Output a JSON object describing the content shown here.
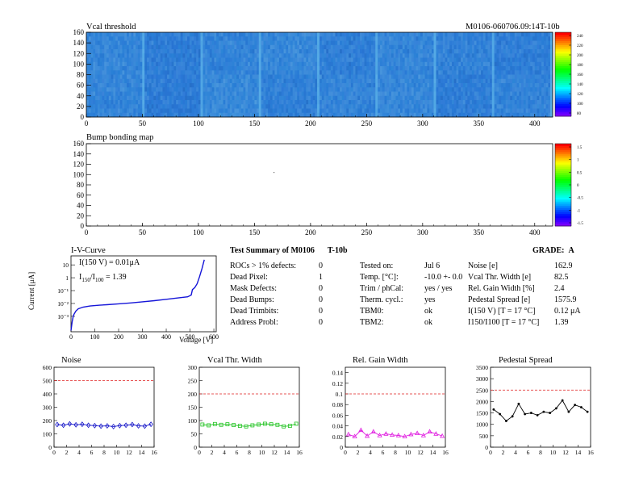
{
  "colors": {
    "vcal_base": "#3c7bd6",
    "bump_fill": "#ffffff",
    "iv_line": "#1515d8",
    "noise": "#1515c8",
    "vcal_width": "#22c322",
    "gain": "#e01fe0",
    "pedestal": "#000000",
    "limit_line": "#e02020"
  },
  "vcal_map": {
    "title": "Vcal threshold",
    "module_id": "M0106-060706.09:14T-10b",
    "x_ticks": [
      "0",
      "50",
      "100",
      "150",
      "200",
      "250",
      "300",
      "350",
      "400"
    ],
    "y_ticks": [
      "0",
      "20",
      "40",
      "60",
      "80",
      "100",
      "120",
      "140",
      "160"
    ],
    "z_ticks": [
      "240",
      "220",
      "200",
      "180",
      "160",
      "140",
      "120",
      "100",
      "80"
    ],
    "x_range": [
      0,
      416
    ],
    "y_range": [
      0,
      160
    ],
    "z_range": [
      80,
      250
    ]
  },
  "bump_map": {
    "title": "Bump bonding map",
    "x_ticks": [
      "0",
      "50",
      "100",
      "150",
      "200",
      "250",
      "300",
      "350",
      "400"
    ],
    "y_ticks": [
      "0",
      "20",
      "40",
      "60",
      "80",
      "100",
      "120",
      "140",
      "160"
    ],
    "z_ticks": [
      "1.5",
      "1",
      "0.5",
      "0",
      "-0.5",
      "-1",
      "-1.5"
    ]
  },
  "iv": {
    "title": "I-V-Curve",
    "ylabel": "Current [μA]",
    "xlabel": "Voltage [V]",
    "annotation1": "I(150 V) = 0.01μA",
    "annotation2_main": "I",
    "annotation2_sub1": "150",
    "annotation2_mid": "/I",
    "annotation2_sub2": "100",
    "annotation2_value": " = 1.39",
    "x_ticks": [
      "0",
      "100",
      "200",
      "300",
      "400",
      "500",
      "600"
    ],
    "y_ticks": [
      "10",
      "1",
      "10⁻¹",
      "10⁻²",
      "10⁻³"
    ],
    "curve": [
      [
        0,
        8e-05
      ],
      [
        5,
        0.0004
      ],
      [
        10,
        0.0012
      ],
      [
        20,
        0.0025
      ],
      [
        30,
        0.0038
      ],
      [
        50,
        0.0052
      ],
      [
        80,
        0.0063
      ],
      [
        120,
        0.0073
      ],
      [
        150,
        0.008
      ],
      [
        200,
        0.0094
      ],
      [
        250,
        0.011
      ],
      [
        300,
        0.0135
      ],
      [
        350,
        0.0165
      ],
      [
        400,
        0.021
      ],
      [
        450,
        0.027
      ],
      [
        490,
        0.033
      ],
      [
        505,
        0.045
      ],
      [
        510,
        0.12
      ],
      [
        520,
        0.17
      ],
      [
        530,
        0.35
      ],
      [
        540,
        1.2
      ],
      [
        550,
        5
      ],
      [
        560,
        25
      ]
    ]
  },
  "summary": {
    "title_main": "Test Summary of M0106",
    "title_id": "T-10b",
    "grade_label": "GRADE:",
    "grade_value": "A",
    "col1": [
      {
        "label": "ROCs > 1% defects:",
        "value": "0"
      },
      {
        "label": "Dead Pixel:",
        "value": "1"
      },
      {
        "label": "Mask Defects:",
        "value": "0"
      },
      {
        "label": "Dead Bumps:",
        "value": "0"
      },
      {
        "label": "Dead Trimbits:",
        "value": "0"
      },
      {
        "label": "Address Probl:",
        "value": "0"
      }
    ],
    "col2": [
      {
        "label": "Tested on:",
        "value": "Jul 6"
      },
      {
        "label": "Temp. [°C]:",
        "value": "-10.0 +- 0.0"
      },
      {
        "label": "Trim / phCal:",
        "value": "yes / yes"
      },
      {
        "label": "Therm. cycl.:",
        "value": "yes"
      },
      {
        "label": "TBM0:",
        "value": "ok"
      },
      {
        "label": "TBM2:",
        "value": "ok"
      }
    ],
    "col3": [
      {
        "label": "Noise [e]",
        "value": "162.9"
      },
      {
        "label": "Vcal Thr. Width [e]",
        "value": "82.5"
      },
      {
        "label": "Rel. Gain Width [%]",
        "value": "2.4"
      },
      {
        "label": "Pedestal Spread [e]",
        "value": "1575.9"
      },
      {
        "label": "I(150 V) [T = 17 °C]",
        "value": "0.12 μA"
      },
      {
        "label": "I150/I100   [T = 17 °C]",
        "value": "1.39"
      }
    ]
  },
  "chart_data": [
    {
      "type": "line",
      "title": "Noise",
      "x": [
        0,
        1,
        2,
        3,
        4,
        5,
        6,
        7,
        8,
        9,
        10,
        11,
        12,
        13,
        14,
        15
      ],
      "values": [
        170,
        165,
        175,
        168,
        172,
        165,
        162,
        158,
        160,
        155,
        162,
        165,
        170,
        160,
        158,
        172
      ],
      "xlim": [
        0,
        16
      ],
      "ylim": [
        0,
        600
      ],
      "limit": 500,
      "y_ticks": [
        "0",
        "100",
        "200",
        "300",
        "400",
        "500",
        "600"
      ],
      "x_ticks": [
        "0",
        "2",
        "4",
        "6",
        "8",
        "10",
        "12",
        "14",
        "16"
      ]
    },
    {
      "type": "line",
      "title": "Vcal Thr. Width",
      "x": [
        0,
        1,
        2,
        3,
        4,
        5,
        6,
        7,
        8,
        9,
        10,
        11,
        12,
        13,
        14,
        15
      ],
      "values": [
        85,
        82,
        87,
        84,
        86,
        83,
        80,
        78,
        82,
        85,
        88,
        86,
        84,
        78,
        80,
        88
      ],
      "xlim": [
        0,
        16
      ],
      "ylim": [
        0,
        300
      ],
      "limit": 200,
      "y_ticks": [
        "0",
        "50",
        "100",
        "150",
        "200",
        "250",
        "300"
      ],
      "x_ticks": [
        "0",
        "2",
        "4",
        "6",
        "8",
        "10",
        "12",
        "14",
        "16"
      ]
    },
    {
      "type": "line",
      "title": "Rel. Gain Width",
      "x": [
        0,
        1,
        2,
        3,
        4,
        5,
        6,
        7,
        8,
        9,
        10,
        11,
        12,
        13,
        14,
        15
      ],
      "values": [
        0.024,
        0.02,
        0.032,
        0.021,
        0.029,
        0.022,
        0.025,
        0.023,
        0.022,
        0.02,
        0.024,
        0.026,
        0.022,
        0.029,
        0.025,
        0.021
      ],
      "xlim": [
        0,
        16
      ],
      "ylim": [
        0,
        0.15
      ],
      "limit": 0.1,
      "y_ticks": [
        "0",
        "0.02",
        "0.04",
        "0.06",
        "0.08",
        "0.1",
        "0.12",
        "0.14"
      ],
      "x_ticks": [
        "0",
        "2",
        "4",
        "6",
        "8",
        "10",
        "12",
        "14",
        "16"
      ]
    },
    {
      "type": "line",
      "title": "Pedestal Spread",
      "x": [
        0,
        1,
        2,
        3,
        4,
        5,
        6,
        7,
        8,
        9,
        10,
        11,
        12,
        13,
        14,
        15
      ],
      "values": [
        1650,
        1450,
        1150,
        1350,
        1900,
        1450,
        1500,
        1400,
        1550,
        1500,
        1700,
        2050,
        1550,
        1850,
        1750,
        1550
      ],
      "xlim": [
        0,
        16
      ],
      "ylim": [
        0,
        3500
      ],
      "limit": 2500,
      "y_ticks": [
        "0",
        "500",
        "1000",
        "1500",
        "2000",
        "2500",
        "3000",
        "3500"
      ],
      "x_ticks": [
        "0",
        "2",
        "4",
        "6",
        "8",
        "10",
        "12",
        "14",
        "16"
      ]
    }
  ]
}
